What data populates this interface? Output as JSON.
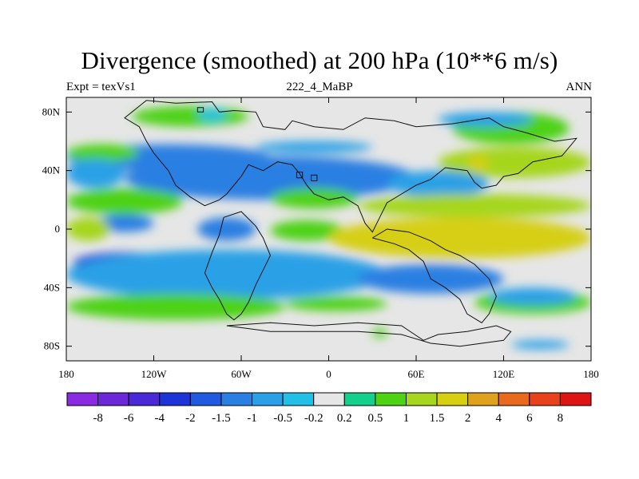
{
  "header": {
    "title": "Divergence (smoothed) at 200 hPa (10**6 m/s)",
    "left_label": "Expt = texVs1",
    "center_label": "222_4_MaBP",
    "right_label": "ANN"
  },
  "chart_data": {
    "type": "heatmap",
    "title": "Divergence (smoothed) at 200 hPa (10**6 m/s)",
    "subtitle": "222_4_MaBP",
    "experiment": "Expt = texVs1",
    "season": "ANN",
    "xlabel": "",
    "ylabel": "",
    "xlim": [
      -180,
      180
    ],
    "ylim": [
      -90,
      90
    ],
    "x_ticks": [
      {
        "value": -180,
        "label": "180"
      },
      {
        "value": -120,
        "label": "120W"
      },
      {
        "value": -60,
        "label": "60W"
      },
      {
        "value": 0,
        "label": "0"
      },
      {
        "value": 60,
        "label": "60E"
      },
      {
        "value": 120,
        "label": "120E"
      },
      {
        "value": 180,
        "label": "180"
      }
    ],
    "y_ticks": [
      {
        "value": 80,
        "label": "80N"
      },
      {
        "value": 40,
        "label": "40N"
      },
      {
        "value": 0,
        "label": "0"
      },
      {
        "value": -40,
        "label": "40S"
      },
      {
        "value": -80,
        "label": "80S"
      }
    ],
    "legend_position": "bottom",
    "levels": [
      "-8",
      "-6",
      "-4",
      "-2",
      "-1.5",
      "-1",
      "-0.5",
      "-0.2",
      "0.2",
      "0.5",
      "1",
      "1.5",
      "2",
      "4",
      "6",
      "8"
    ],
    "colors": [
      "#8a2be2",
      "#6a28d8",
      "#4a2ad8",
      "#1c34d8",
      "#1f5ae0",
      "#2a7fe2",
      "#2ba0e6",
      "#22c0e6",
      "#e6e6e6",
      "#14d08c",
      "#4ed214",
      "#a6d61e",
      "#d6cf12",
      "#e0a21c",
      "#e86a1c",
      "#e8421c",
      "#dc1414"
    ],
    "fields": [
      {
        "name": "arctic-rim-band",
        "value": 0.8,
        "lon_range": [
          -135,
          -55
        ],
        "lat_range": [
          70,
          84
        ]
      },
      {
        "name": "arctic-rim-weak",
        "value": -0.4,
        "lon_range": [
          -90,
          -70
        ],
        "lat_range": [
          74,
          82
        ]
      },
      {
        "name": "north-pacific-band",
        "value": -1.2,
        "lon_range": [
          -180,
          -40
        ],
        "lat_range": [
          40,
          58
        ]
      },
      {
        "name": "north-pacific-pos",
        "value": 0.6,
        "lon_range": [
          -180,
          -130
        ],
        "lat_range": [
          46,
          58
        ]
      },
      {
        "name": "north-atlantic-band",
        "value": -0.8,
        "lon_range": [
          -50,
          30
        ],
        "lat_range": [
          52,
          60
        ]
      },
      {
        "name": "siberia-band",
        "value": 0.7,
        "lon_range": [
          85,
          165
        ],
        "lat_range": [
          58,
          80
        ]
      },
      {
        "name": "siberia-neg",
        "value": -0.8,
        "lon_range": [
          75,
          140
        ],
        "lat_range": [
          70,
          80
        ]
      },
      {
        "name": "north-asia-pos",
        "value": 1.0,
        "lon_range": [
          75,
          180
        ],
        "lat_range": [
          35,
          56
        ]
      },
      {
        "name": "north-asia-max",
        "value": 1.6,
        "lon_range": [
          95,
          110
        ],
        "lat_range": [
          40,
          50
        ]
      },
      {
        "name": "north-asia-neg",
        "value": -0.7,
        "lon_range": [
          -180,
          -140
        ],
        "lat_range": [
          28,
          48
        ]
      },
      {
        "name": "midlat-conv-core",
        "value": -4.5,
        "lon_range": [
          -75,
          30
        ],
        "lat_range": [
          27,
          44
        ]
      },
      {
        "name": "midlat-conv-wide",
        "value": -1.5,
        "lon_range": [
          -140,
          60
        ],
        "lat_range": [
          20,
          50
        ]
      },
      {
        "name": "asia-conv",
        "value": -1.0,
        "lon_range": [
          40,
          110
        ],
        "lat_range": [
          22,
          40
        ]
      },
      {
        "name": "subtropic-pos-west",
        "value": 0.9,
        "lon_range": [
          -180,
          -100
        ],
        "lat_range": [
          10,
          28
        ]
      },
      {
        "name": "subtropic-pos-atl",
        "value": 0.9,
        "lon_range": [
          -40,
          20
        ],
        "lat_range": [
          14,
          28
        ]
      },
      {
        "name": "asia-monsoon-pos",
        "value": 1.4,
        "lon_range": [
          20,
          180
        ],
        "lat_range": [
          8,
          24
        ]
      },
      {
        "name": "equator-neg-west",
        "value": -1.2,
        "lon_range": [
          -160,
          -120
        ],
        "lat_range": [
          -2,
          10
        ]
      },
      {
        "name": "equator-neg-mid",
        "value": -1.4,
        "lon_range": [
          -90,
          -50
        ],
        "lat_range": [
          -8,
          8
        ]
      },
      {
        "name": "equator-pos-pacific",
        "value": 1.0,
        "lon_range": [
          -180,
          -150
        ],
        "lat_range": [
          -8,
          8
        ]
      },
      {
        "name": "equator-pos-atl",
        "value": 0.8,
        "lon_range": [
          -40,
          10
        ],
        "lat_range": [
          -8,
          6
        ]
      },
      {
        "name": "tropical-div-core",
        "value": 3.0,
        "lon_range": [
          30,
          120
        ],
        "lat_range": [
          -14,
          4
        ]
      },
      {
        "name": "tropical-div-wide",
        "value": 1.5,
        "lon_range": [
          0,
          180
        ],
        "lat_range": [
          -20,
          8
        ]
      },
      {
        "name": "south-conv-west",
        "value": -2.2,
        "lon_range": [
          -175,
          -100
        ],
        "lat_range": [
          -30,
          -16
        ]
      },
      {
        "name": "south-conv-mid",
        "value": -2.8,
        "lon_range": [
          -90,
          -45
        ],
        "lat_range": [
          -38,
          -24
        ]
      },
      {
        "name": "south-conv-wide",
        "value": -1.0,
        "lon_range": [
          -180,
          40
        ],
        "lat_range": [
          -48,
          -14
        ]
      },
      {
        "name": "south-conv-east",
        "value": -1.2,
        "lon_range": [
          20,
          120
        ],
        "lat_range": [
          -44,
          -24
        ]
      },
      {
        "name": "south-pos-band",
        "value": 0.8,
        "lon_range": [
          -180,
          -30
        ],
        "lat_range": [
          -62,
          -44
        ]
      },
      {
        "name": "south-pos-east",
        "value": 0.9,
        "lon_range": [
          100,
          180
        ],
        "lat_range": [
          -58,
          -42
        ]
      },
      {
        "name": "south-pos-center",
        "value": 0.6,
        "lon_range": [
          -30,
          40
        ],
        "lat_range": [
          -56,
          -46
        ]
      },
      {
        "name": "south-neg-east",
        "value": -0.8,
        "lon_range": [
          110,
          170
        ],
        "lat_range": [
          -52,
          -40
        ]
      },
      {
        "name": "antarctic-neg",
        "value": -0.6,
        "lon_range": [
          125,
          165
        ],
        "lat_range": [
          -82,
          -76
        ]
      },
      {
        "name": "antarctic-spot",
        "value": 0.7,
        "lon_range": [
          30,
          40
        ],
        "lat_range": [
          -74,
          -68
        ]
      }
    ],
    "coastline": {
      "north_continent": [
        [
          -125,
          88
        ],
        [
          -105,
          86
        ],
        [
          -80,
          87
        ],
        [
          -75,
          80
        ],
        [
          -65,
          81
        ],
        [
          -50,
          80
        ],
        [
          -45,
          70
        ],
        [
          -30,
          68
        ],
        [
          -25,
          74
        ],
        [
          -10,
          70
        ],
        [
          10,
          68
        ],
        [
          25,
          76
        ],
        [
          45,
          74
        ],
        [
          60,
          70
        ],
        [
          85,
          72
        ],
        [
          110,
          76
        ],
        [
          120,
          70
        ],
        [
          135,
          66
        ],
        [
          155,
          60
        ],
        [
          170,
          62
        ],
        [
          160,
          50
        ],
        [
          140,
          46
        ],
        [
          130,
          38
        ],
        [
          120,
          36
        ],
        [
          115,
          30
        ],
        [
          105,
          28
        ],
        [
          100,
          32
        ],
        [
          95,
          40
        ],
        [
          80,
          42
        ],
        [
          70,
          34
        ],
        [
          60,
          30
        ],
        [
          50,
          24
        ],
        [
          40,
          18
        ],
        [
          35,
          8
        ],
        [
          30,
          -2
        ],
        [
          25,
          4
        ],
        [
          20,
          16
        ],
        [
          10,
          22
        ],
        [
          0,
          20
        ],
        [
          -10,
          24
        ],
        [
          -15,
          30
        ],
        [
          -20,
          38
        ],
        [
          -25,
          44
        ],
        [
          -35,
          46
        ],
        [
          -45,
          40
        ],
        [
          -55,
          44
        ],
        [
          -60,
          36
        ],
        [
          -65,
          30
        ],
        [
          -70,
          24
        ],
        [
          -75,
          20
        ],
        [
          -85,
          16
        ],
        [
          -95,
          22
        ],
        [
          -105,
          30
        ],
        [
          -110,
          40
        ],
        [
          -115,
          46
        ],
        [
          -120,
          52
        ],
        [
          -125,
          60
        ],
        [
          -130,
          70
        ],
        [
          -140,
          76
        ],
        [
          -130,
          84
        ],
        [
          -125,
          88
        ]
      ],
      "south_continent": [
        [
          -72,
          8
        ],
        [
          -60,
          12
        ],
        [
          -50,
          2
        ],
        [
          -45,
          -6
        ],
        [
          -40,
          -18
        ],
        [
          -45,
          -28
        ],
        [
          -50,
          -38
        ],
        [
          -55,
          -50
        ],
        [
          -60,
          -58
        ],
        [
          -65,
          -62
        ],
        [
          -70,
          -58
        ],
        [
          -75,
          -48
        ],
        [
          -80,
          -40
        ],
        [
          -85,
          -30
        ],
        [
          -80,
          -16
        ],
        [
          -75,
          -4
        ],
        [
          -72,
          8
        ]
      ],
      "east_continent": [
        [
          30,
          -6
        ],
        [
          45,
          -10
        ],
        [
          55,
          -14
        ],
        [
          65,
          -22
        ],
        [
          70,
          -34
        ],
        [
          80,
          -40
        ],
        [
          90,
          -48
        ],
        [
          95,
          -58
        ],
        [
          105,
          -64
        ],
        [
          110,
          -58
        ],
        [
          115,
          -46
        ],
        [
          110,
          -34
        ],
        [
          100,
          -24
        ],
        [
          90,
          -18
        ],
        [
          80,
          -14
        ],
        [
          70,
          -8
        ],
        [
          55,
          -2
        ],
        [
          40,
          0
        ],
        [
          30,
          -6
        ]
      ],
      "antarctic": [
        [
          -70,
          -66
        ],
        [
          -40,
          -64
        ],
        [
          -10,
          -66
        ],
        [
          20,
          -64
        ],
        [
          50,
          -66
        ],
        [
          65,
          -76
        ],
        [
          75,
          -72
        ],
        [
          95,
          -70
        ],
        [
          115,
          -66
        ],
        [
          125,
          -70
        ],
        [
          120,
          -76
        ],
        [
          90,
          -80
        ],
        [
          70,
          -78
        ],
        [
          50,
          -72
        ],
        [
          20,
          -70
        ],
        [
          -10,
          -70
        ],
        [
          -40,
          -70
        ],
        [
          -70,
          -66
        ]
      ],
      "island_1": [
        [
          -22,
          35
        ],
        [
          -18,
          35
        ],
        [
          -18,
          39
        ],
        [
          -22,
          39
        ],
        [
          -22,
          35
        ]
      ],
      "island_2": [
        [
          -12,
          33
        ],
        [
          -8,
          33
        ],
        [
          -8,
          37
        ],
        [
          -12,
          37
        ],
        [
          -12,
          33
        ]
      ],
      "island_3": [
        [
          -90,
          80
        ],
        [
          -86,
          80
        ],
        [
          -86,
          83
        ],
        [
          -90,
          83
        ],
        [
          -90,
          80
        ]
      ]
    }
  }
}
